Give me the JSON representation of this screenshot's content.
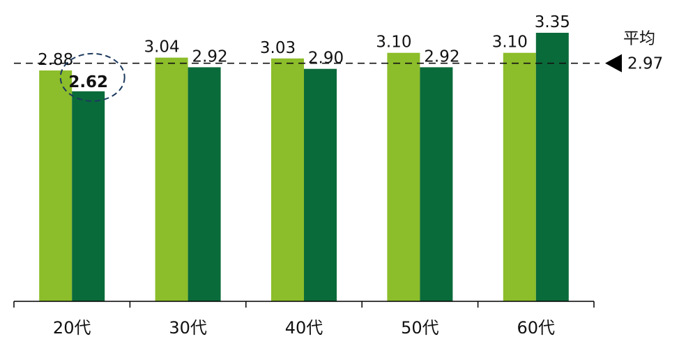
{
  "chart_data": {
    "type": "bar",
    "categories": [
      "20代",
      "30代",
      "40代",
      "50代",
      "60代"
    ],
    "series": [
      {
        "values": [
          2.88,
          3.04,
          3.03,
          3.1,
          3.1
        ]
      },
      {
        "values": [
          2.62,
          2.92,
          2.9,
          2.92,
          3.35
        ]
      }
    ],
    "value_labels": [
      [
        "2.88",
        "3.04",
        "3.03",
        "3.10",
        "3.10"
      ],
      [
        "2.62",
        "2.92",
        "2.90",
        "2.92",
        "3.35"
      ]
    ],
    "ylim": [
      0,
      3.35
    ],
    "grid": false,
    "average_line": {
      "value": 2.97,
      "label": "平均",
      "value_label": "2.97"
    },
    "highlight": {
      "series": 1,
      "category": 0
    }
  },
  "colors": {
    "series_1": "#8cbd2a",
    "series_2": "#0a6b3a",
    "average_line": "#111111",
    "highlight_ring": "#1c3a5e"
  }
}
